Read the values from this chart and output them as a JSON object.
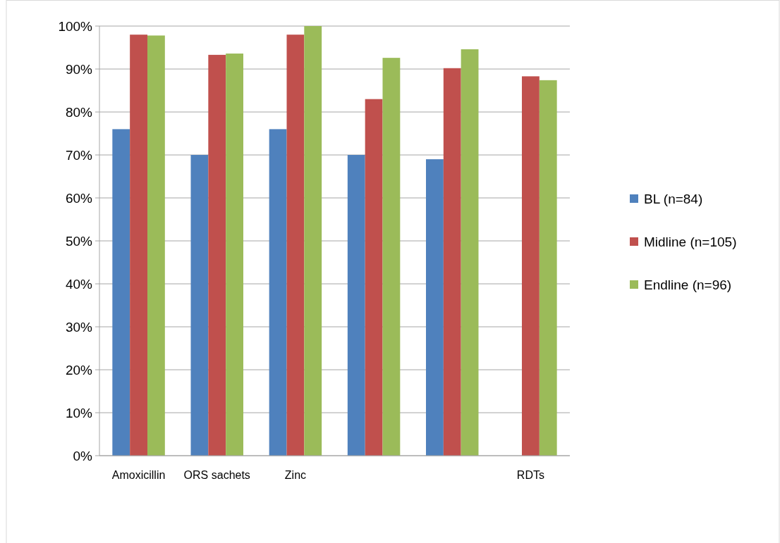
{
  "chart_data": {
    "type": "bar",
    "categories": [
      "Amoxicillin",
      "ORS sachets",
      "Zinc",
      null,
      null,
      "RDTs"
    ],
    "series": [
      {
        "name": "BL (n=84)",
        "color": "#4f81bd",
        "values": [
          76,
          70,
          76,
          70,
          69,
          null
        ]
      },
      {
        "name": "Midline (n=105)",
        "color": "#c0504d",
        "values": [
          98,
          93.3,
          98,
          83,
          90.2,
          88.3
        ]
      },
      {
        "name": "Endline (n=96)",
        "color": "#9bbb59",
        "values": [
          97.8,
          93.6,
          100,
          92.6,
          94.6,
          87.4
        ]
      }
    ],
    "ylim": [
      0,
      100
    ],
    "yticks": [
      {
        "value": 0,
        "label": "0%"
      },
      {
        "value": 10,
        "label": "10%"
      },
      {
        "value": 20,
        "label": "20%"
      },
      {
        "value": 30,
        "label": "30%"
      },
      {
        "value": 40,
        "label": "40%"
      },
      {
        "value": 50,
        "label": "50%"
      },
      {
        "value": 60,
        "label": "60%"
      },
      {
        "value": 70,
        "label": "70%"
      },
      {
        "value": 80,
        "label": "80%"
      },
      {
        "value": 90,
        "label": "90%"
      },
      {
        "value": 100,
        "label": "100%"
      }
    ],
    "grid": "y",
    "legend": "right"
  }
}
